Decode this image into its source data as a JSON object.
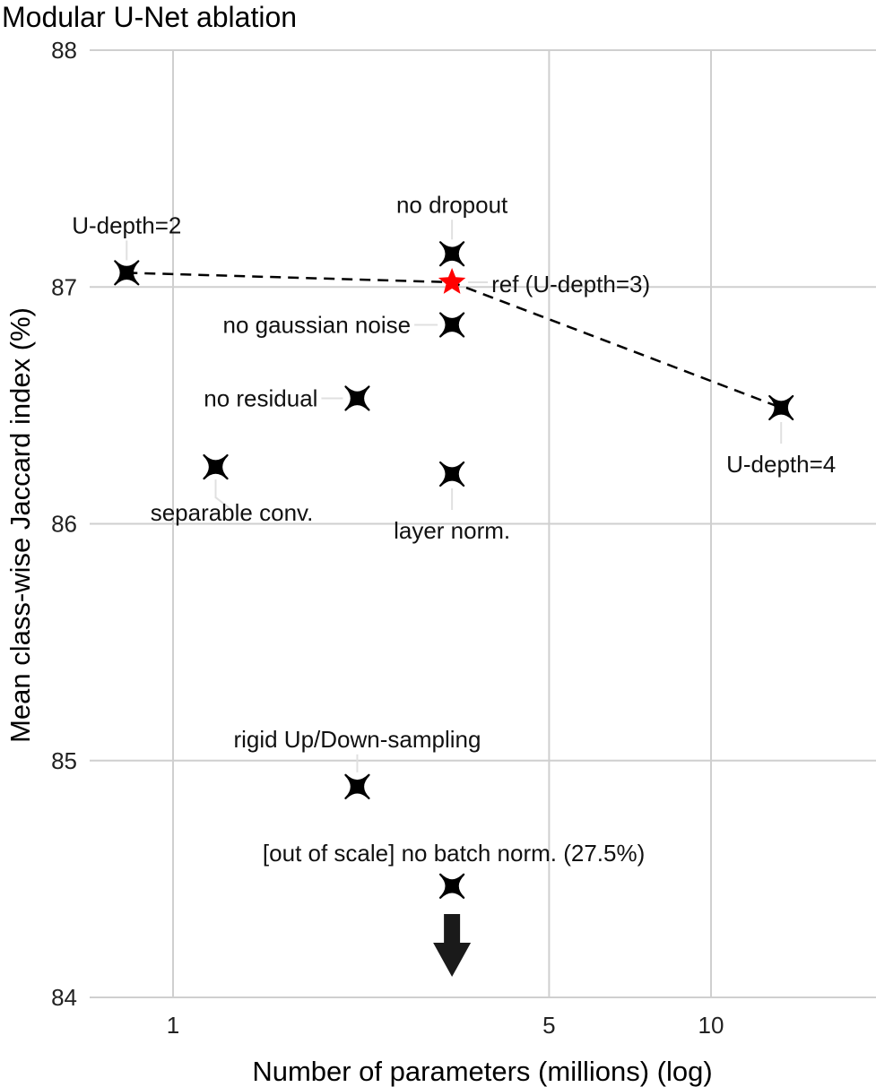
{
  "chart_data": {
    "type": "scatter",
    "title": "Modular U-Net ablation",
    "xlabel": "Number of parameters (millions) (log)",
    "ylabel": "Mean class-wise Jaccard index (%)",
    "x_scale": "log",
    "xlim": [
      0.75,
      20
    ],
    "ylim": [
      84,
      88
    ],
    "x_ticks": [
      1,
      5,
      10
    ],
    "x_tick_labels": [
      "1",
      "5",
      "10"
    ],
    "y_ticks": [
      84,
      85,
      86,
      87,
      88
    ],
    "y_tick_labels": [
      "84",
      "85",
      "86",
      "87",
      "88"
    ],
    "grid": true,
    "points": [
      {
        "label": "U-depth=2",
        "x": 0.82,
        "y": 87.06,
        "marker": "cross"
      },
      {
        "label": "ref (U-depth=3)",
        "x": 3.3,
        "y": 87.02,
        "marker": "star",
        "color": "#ff0000"
      },
      {
        "label": "no dropout",
        "x": 3.3,
        "y": 87.14,
        "marker": "cross"
      },
      {
        "label": "no gaussian noise",
        "x": 3.3,
        "y": 86.84,
        "marker": "cross"
      },
      {
        "label": "no residual",
        "x": 2.2,
        "y": 86.53,
        "marker": "cross"
      },
      {
        "label": "separable conv.",
        "x": 1.2,
        "y": 86.24,
        "marker": "cross"
      },
      {
        "label": "layer norm.",
        "x": 3.3,
        "y": 86.21,
        "marker": "cross"
      },
      {
        "label": "U-depth=4",
        "x": 13.5,
        "y": 86.49,
        "marker": "cross"
      },
      {
        "label": "rigid Up/Down-sampling",
        "x": 2.2,
        "y": 84.89,
        "marker": "cross"
      },
      {
        "label": "[out of scale] no batch norm. (27.5%)",
        "x": 3.3,
        "y": 84.47,
        "marker": "cross"
      }
    ],
    "dashed_line": {
      "x": [
        0.82,
        3.3,
        13.5
      ],
      "y": [
        87.06,
        87.02,
        86.49
      ]
    },
    "out_of_scale_arrow": {
      "x": 3.3,
      "direction": "down"
    },
    "colors": {
      "marker": "#000000",
      "reference": "#ff0000",
      "grid": "#cfcfcf",
      "arrow": "#1a1a1a"
    }
  }
}
